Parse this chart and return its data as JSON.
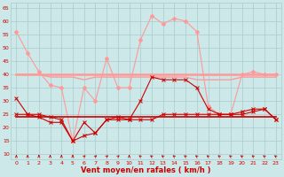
{
  "x": [
    0,
    1,
    2,
    3,
    4,
    5,
    6,
    7,
    8,
    9,
    10,
    11,
    12,
    13,
    14,
    15,
    16,
    17,
    18,
    19,
    20,
    21,
    22,
    23
  ],
  "rafales": [
    56,
    48,
    41,
    36,
    35,
    15,
    35,
    30,
    46,
    35,
    35,
    53,
    62,
    59,
    61,
    60,
    56,
    28,
    25,
    25,
    40,
    41,
    40,
    40
  ],
  "avg_high": [
    40,
    40,
    40,
    40,
    40,
    40,
    40,
    40,
    40,
    40,
    40,
    40,
    40,
    40,
    40,
    40,
    40,
    40,
    40,
    40,
    40,
    40,
    40,
    40
  ],
  "avg_low": [
    40,
    40,
    40,
    39,
    39,
    39,
    38,
    39,
    39,
    39,
    39,
    39,
    39,
    39,
    39,
    39,
    38,
    38,
    38,
    38,
    39,
    39,
    39,
    39
  ],
  "vent_inst": [
    31,
    25,
    25,
    24,
    23,
    15,
    22,
    18,
    23,
    24,
    23,
    30,
    39,
    38,
    38,
    38,
    35,
    27,
    25,
    25,
    26,
    27,
    27,
    23
  ],
  "vent_min": [
    25,
    25,
    24,
    22,
    22,
    15,
    17,
    18,
    23,
    23,
    23,
    23,
    23,
    25,
    25,
    25,
    25,
    25,
    25,
    25,
    25,
    26,
    27,
    23
  ],
  "vent_ref": [
    24,
    24,
    24,
    24,
    24,
    24,
    24,
    24,
    24,
    24,
    24,
    24,
    24,
    24,
    24,
    24,
    24,
    24,
    24,
    24,
    24,
    24,
    24,
    24
  ],
  "wind_dirs": [
    0,
    0,
    0,
    0,
    0,
    0,
    45,
    45,
    45,
    45,
    0,
    -45,
    -45,
    -45,
    -45,
    -45,
    -45,
    -45,
    -45,
    -45,
    -45,
    -45,
    -45,
    -45
  ],
  "bg_color": "#cce8e8",
  "grid_color": "#aacccc",
  "light_pink": "#ff9999",
  "dark_red": "#cc0000",
  "xlabel": "Vent moyen/en rafales ( km/h )",
  "ylim": [
    8,
    67
  ],
  "yticks": [
    10,
    15,
    20,
    25,
    30,
    35,
    40,
    45,
    50,
    55,
    60,
    65
  ]
}
